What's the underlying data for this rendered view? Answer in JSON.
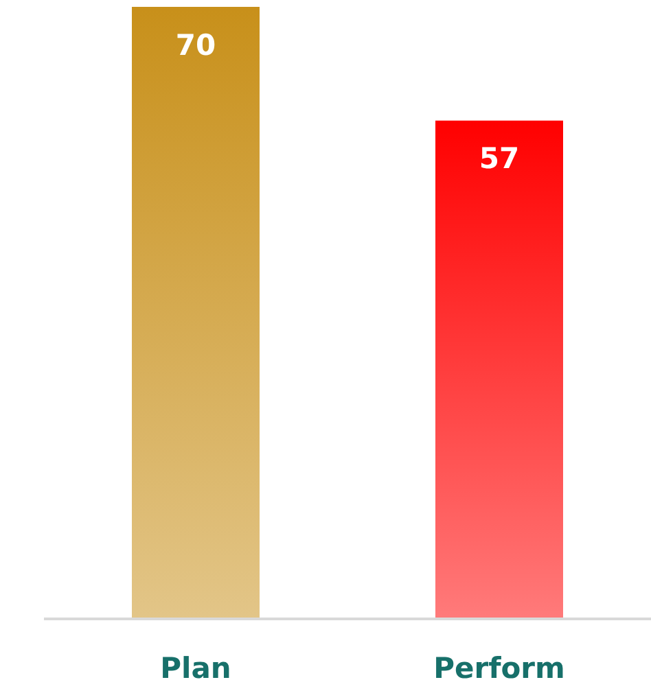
{
  "chart_data": {
    "type": "bar",
    "categories": [
      "Plan",
      "Perform"
    ],
    "values": [
      70,
      57
    ],
    "colors": [
      "#c8901a",
      "#ff0000"
    ],
    "data_labels": true,
    "grid": false,
    "legend": false
  }
}
